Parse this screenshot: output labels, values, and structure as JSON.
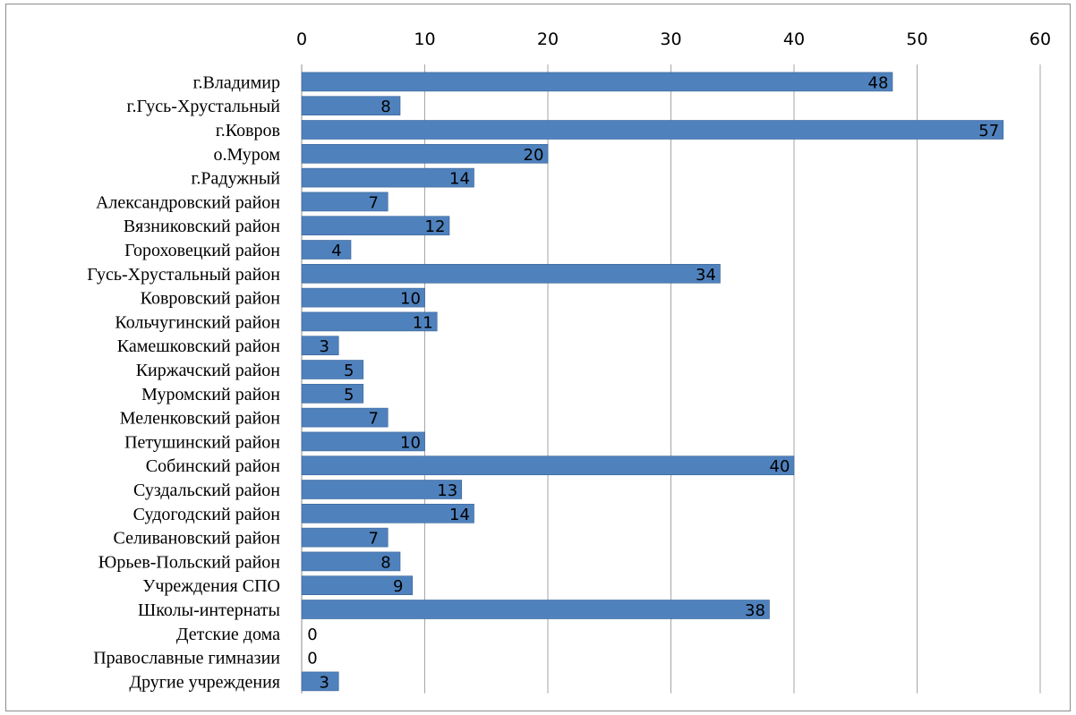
{
  "chart_data": {
    "type": "bar",
    "orientation": "horizontal",
    "x_axis_position": "top",
    "xlim": [
      0,
      60
    ],
    "x_ticks": [
      0,
      10,
      20,
      30,
      40,
      50,
      60
    ],
    "grid": true,
    "legend": "none",
    "bar_color": "#4f81bd",
    "categories": [
      "г.Владимир",
      "г.Гусь-Хрустальный",
      "г.Ковров",
      "о.Муром",
      "г.Радужный",
      "Александровский район",
      "Вязниковский район",
      "Гороховецкий район",
      "Гусь-Хрустальный район",
      "Ковровский район",
      "Кольчугинский район",
      "Камешковский район",
      "Киржачский район",
      "Муромский район",
      "Меленковский район",
      "Петушинский район",
      "Собинский район",
      "Суздальский район",
      "Судогодский район",
      "Селивановский район",
      "Юрьев-Польский район",
      "Учреждения СПО",
      "Школы-интернаты",
      "Детские дома",
      "Православные гимназии",
      "Другие учреждения"
    ],
    "values": [
      48,
      8,
      57,
      20,
      14,
      7,
      12,
      4,
      34,
      10,
      11,
      3,
      5,
      5,
      7,
      10,
      40,
      13,
      14,
      7,
      8,
      9,
      38,
      0,
      0,
      3
    ]
  }
}
